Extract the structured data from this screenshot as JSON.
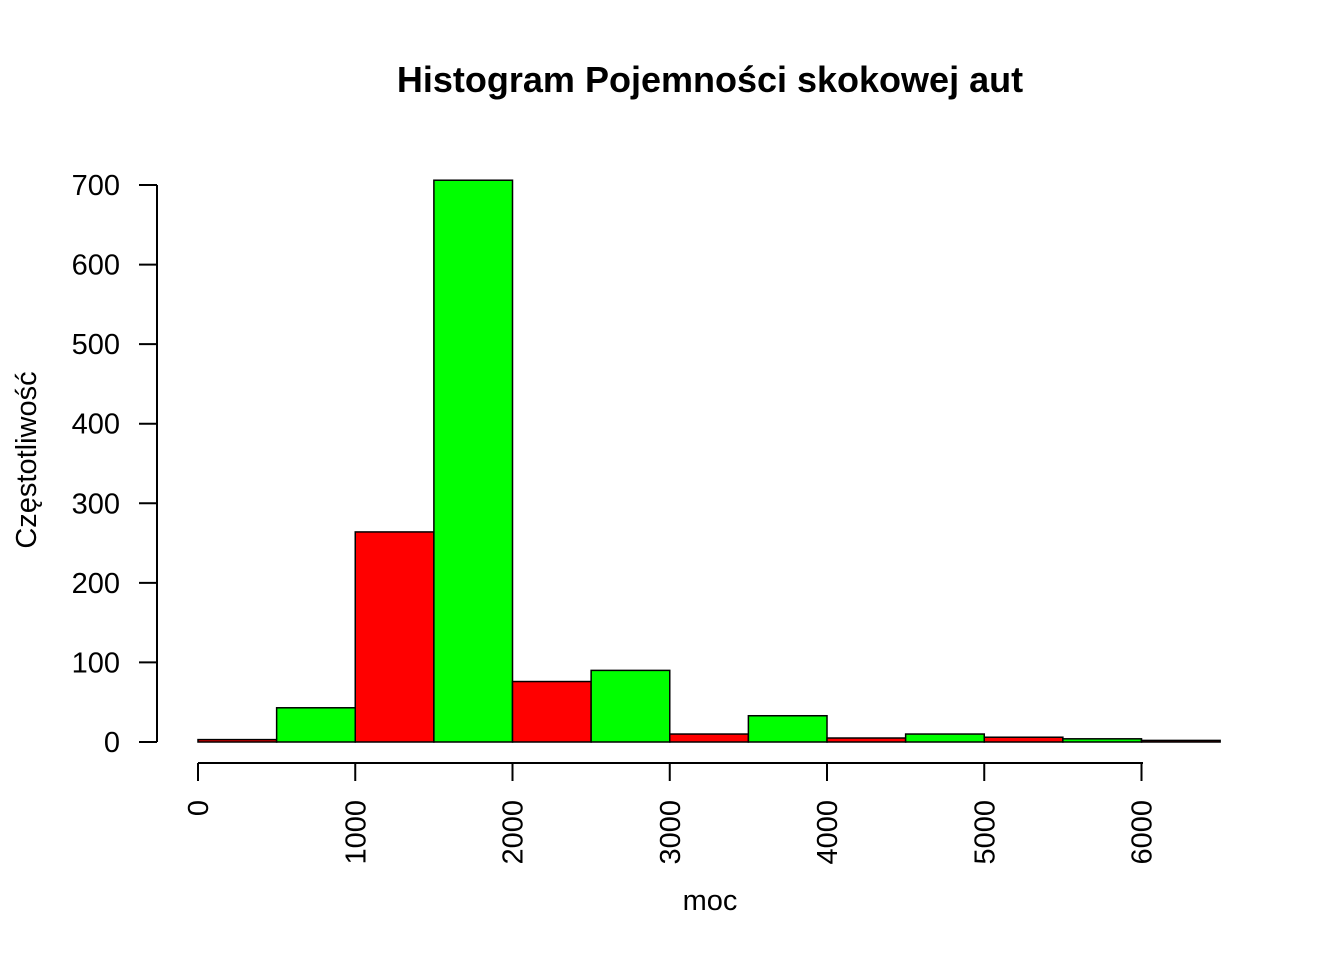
{
  "chart_data": {
    "type": "histogram",
    "title": "Histogram Pojemności skokowej aut",
    "xlabel": "moc",
    "ylabel": "Częstotliwość",
    "xlim": [
      0,
      6500
    ],
    "ylim": [
      0,
      700
    ],
    "x_ticks": [
      "0",
      "1000",
      "2000",
      "3000",
      "4000",
      "5000",
      "6000"
    ],
    "y_ticks": [
      "0",
      "100",
      "200",
      "300",
      "400",
      "500",
      "600",
      "700"
    ],
    "bin_edges": [
      0,
      500,
      1000,
      1500,
      2000,
      2500,
      3000,
      3500,
      4000,
      4500,
      5000,
      5500,
      6000,
      6500
    ],
    "values": [
      3,
      43,
      264,
      706,
      76,
      90,
      10,
      33,
      5,
      10,
      6,
      4,
      2
    ],
    "bar_colors": [
      "#ff0000",
      "#00ff00"
    ],
    "grid": false,
    "legend": "none"
  }
}
